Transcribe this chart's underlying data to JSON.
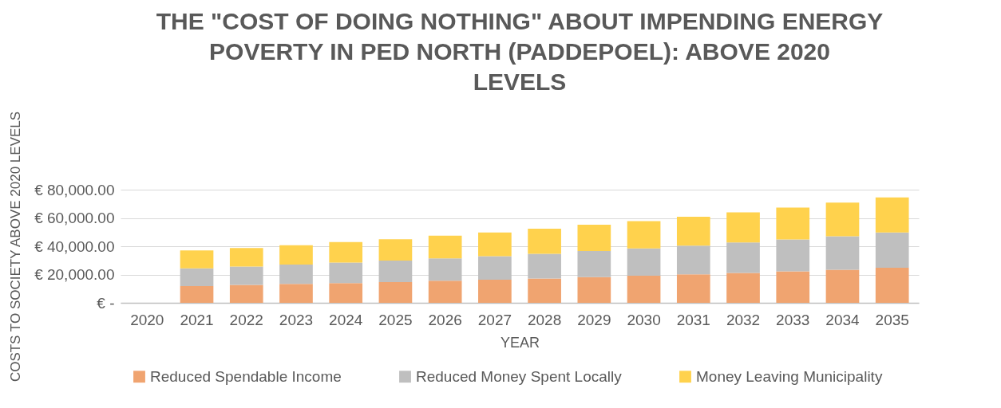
{
  "chart_data": {
    "type": "bar",
    "stacked": true,
    "title": "THE \"COST OF DOING NOTHING\" ABOUT IMPENDING ENERGY POVERTY IN PED NORTH (PADDEPOEL): ABOVE 2020 LEVELS",
    "xlabel": "YEAR",
    "ylabel": "COSTS TO SOCIETY ABOVE 2020 LEVELS",
    "categories": [
      "2020",
      "2021",
      "2022",
      "2023",
      "2024",
      "2025",
      "2026",
      "2027",
      "2028",
      "2029",
      "2030",
      "2031",
      "2032",
      "2033",
      "2034",
      "2035"
    ],
    "series": [
      {
        "name": "Reduced Spendable Income",
        "color": "#f0a470",
        "values": [
          0,
          11900,
          12700,
          13400,
          14000,
          14600,
          15600,
          16400,
          17200,
          18100,
          19100,
          20100,
          21100,
          22200,
          23400,
          24800
        ]
      },
      {
        "name": "Reduced Money Spent Locally",
        "color": "#bfbfbf",
        "values": [
          0,
          12500,
          13000,
          13700,
          14500,
          15200,
          15800,
          16500,
          17500,
          18500,
          19300,
          20300,
          21600,
          22600,
          23600,
          24900
        ]
      },
      {
        "name": "Money Leaving Municipality",
        "color": "#ffd24d",
        "values": [
          0,
          12600,
          13100,
          13600,
          14400,
          15200,
          16000,
          16800,
          17700,
          18600,
          19300,
          20400,
          21200,
          22500,
          23800,
          24800
        ]
      }
    ],
    "ylim": [
      0,
      80000
    ],
    "yticks": [
      {
        "value": 0,
        "label": "€ -"
      },
      {
        "value": 20000,
        "label": "€ 20,000.00"
      },
      {
        "value": 40000,
        "label": "€ 40,000.00"
      },
      {
        "value": 60000,
        "label": "€ 60,000.00"
      },
      {
        "value": 80000,
        "label": "€ 80,000.00"
      }
    ],
    "grid": "y",
    "legend": "bottom"
  }
}
